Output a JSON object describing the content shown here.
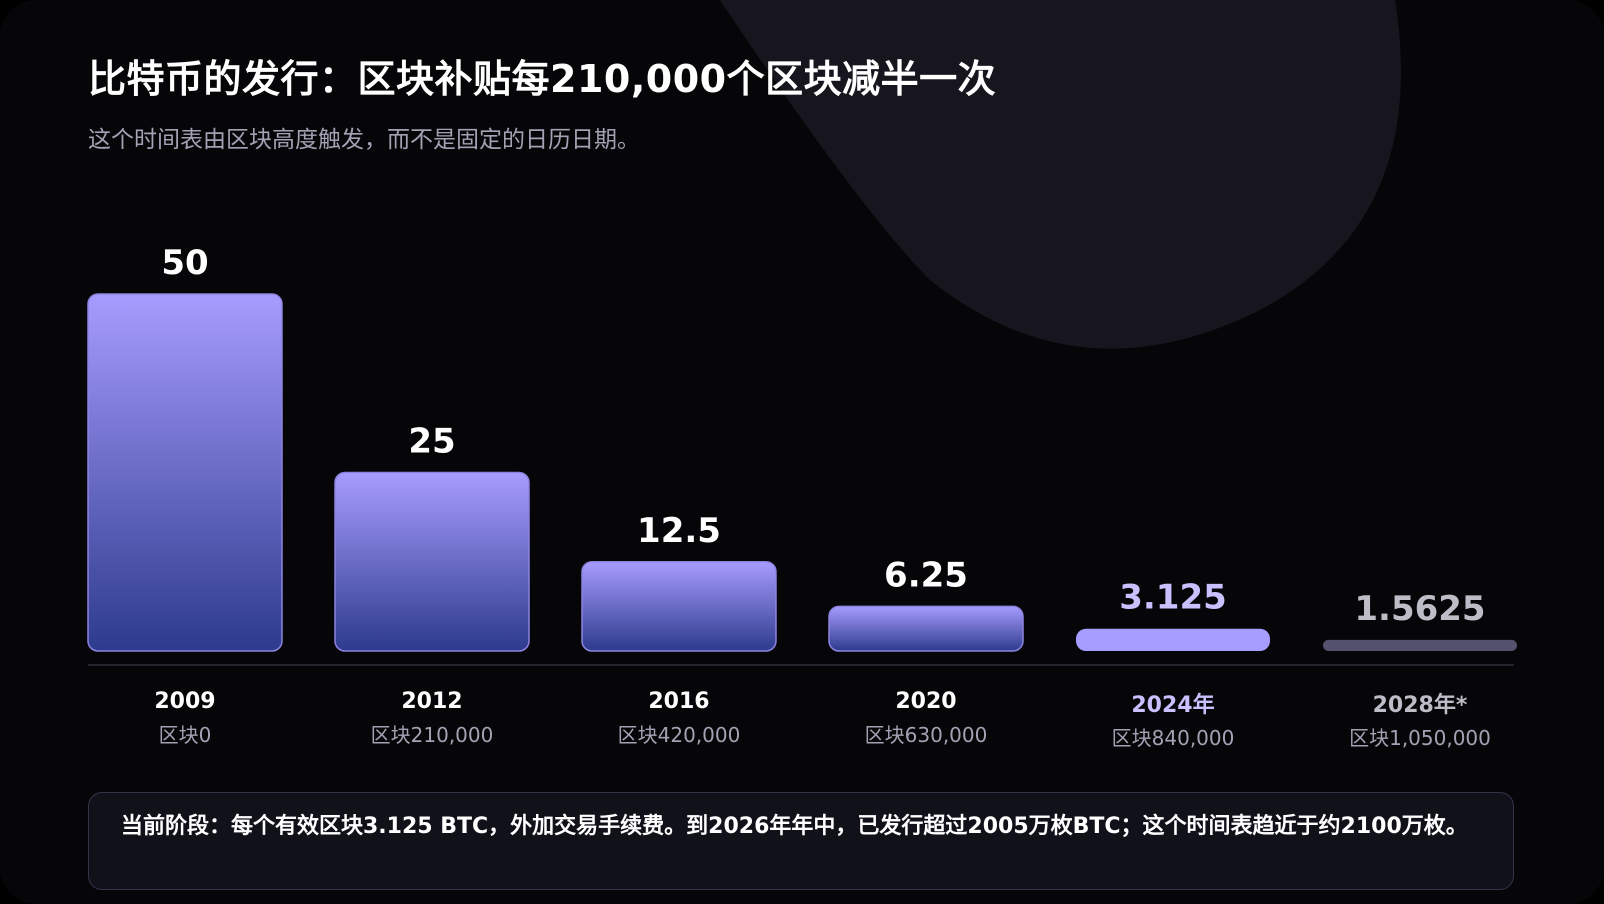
{
  "title": "比特币的发行：区块补贴每210,000个区块减半一次",
  "subtitle": "这个时间表由区块高度触发，而不是固定的日历日期。",
  "note": "当前阶段：每个有效区块3.125 BTC，外加交易手续费。到2026年年中，已发行超过2005万枚BTC；这个时间表趋近于约2100万枚。",
  "colors": {
    "background": "#060608",
    "bar_top": "#a79cff",
    "bar_bottom": "#2d3b8c",
    "bar_border": "#8d84e0",
    "current_bar": "#a79cff",
    "future_bar": "#55526e",
    "current_text": "#c8c0ff",
    "future_text": "#bdbdc8",
    "muted_text": "#a3a1b3",
    "decor_shape": "#17161f"
  },
  "chart_data": {
    "type": "bar",
    "categories": [
      "2009",
      "2012",
      "2016",
      "2020",
      "2024年",
      "2028年*"
    ],
    "block_labels": [
      "区块0",
      "区块210,000",
      "区块420,000",
      "区块630,000",
      "区块840,000",
      "区块1,050,000"
    ],
    "values": [
      50,
      25,
      12.5,
      6.25,
      3.125,
      1.5625
    ],
    "value_labels": [
      "50",
      "25",
      "12.5",
      "6.25",
      "3.125",
      "1.5625"
    ],
    "status": [
      "past",
      "past",
      "past",
      "past",
      "current",
      "future"
    ],
    "ylim": [
      0,
      50
    ],
    "grid": false,
    "legend": "none",
    "xlabel": "",
    "ylabel": ""
  }
}
